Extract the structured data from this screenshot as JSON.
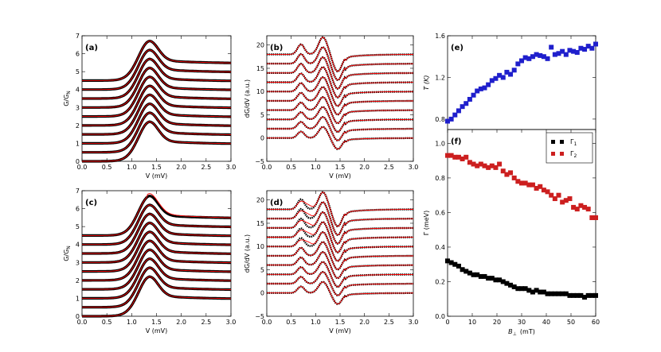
{
  "chart_data": [
    {
      "panel_label": "(a)",
      "type": "line",
      "xlabel": "V (mV)",
      "ylabel": "G/G",
      "ylabel_sub": "N",
      "xlim": [
        0.0,
        3.0
      ],
      "ylim": [
        0,
        7
      ],
      "xticks": [
        "0.0",
        "0.5",
        "1.0",
        "1.5",
        "2.0",
        "2.5",
        "3.0"
      ],
      "yticks": [
        "0",
        "1",
        "2",
        "3",
        "4",
        "5",
        "6",
        "7"
      ],
      "offsets": [
        0,
        0.5,
        1.0,
        1.5,
        2.0,
        2.5,
        3.0,
        3.5,
        4.0,
        4.5
      ],
      "peak_height": 1.4,
      "peak_position_mV": 1.35,
      "series": [
        {
          "name": "data",
          "color": "#000000"
        },
        {
          "name": "fit",
          "color": "#ff0000"
        }
      ]
    },
    {
      "panel_label": "(b)",
      "type": "line",
      "xlabel": "V (mV)",
      "ylabel": "dG/dV (a.u.)",
      "xlim": [
        0.0,
        3.0
      ],
      "ylim": [
        -5,
        22
      ],
      "xticks": [
        "0.0",
        "0.5",
        "1.0",
        "1.5",
        "2.0",
        "2.5",
        "3.0"
      ],
      "yticks": [
        "−5",
        "0",
        "5",
        "10",
        "15",
        "20"
      ],
      "offsets": [
        0,
        2,
        4,
        6,
        8,
        10,
        12,
        14,
        16,
        18
      ],
      "peak_positions_mV": [
        0.7,
        1.15
      ],
      "series": [
        {
          "name": "data",
          "color": "#000000"
        },
        {
          "name": "fit",
          "color": "#ff0000"
        }
      ]
    },
    {
      "panel_label": "(c)",
      "type": "line",
      "xlabel": "V (mV)",
      "ylabel": "G/G",
      "ylabel_sub": "N",
      "xlim": [
        0.0,
        3.0
      ],
      "ylim": [
        0,
        7
      ],
      "xticks": [
        "0.0",
        "0.5",
        "1.0",
        "1.5",
        "2.0",
        "2.5",
        "3.0"
      ],
      "yticks": [
        "0",
        "1",
        "2",
        "3",
        "4",
        "5",
        "6",
        "7"
      ],
      "offsets": [
        0,
        0.5,
        1.0,
        1.5,
        2.0,
        2.5,
        3.0,
        3.5,
        4.0,
        4.5
      ],
      "peak_height": 1.4,
      "peak_position_mV": 1.35,
      "series": [
        {
          "name": "data",
          "color": "#000000"
        },
        {
          "name": "fit",
          "color": "#ff0000"
        }
      ]
    },
    {
      "panel_label": "(d)",
      "type": "line",
      "xlabel": "V (mV)",
      "ylabel": "dG/dV (a.u.)",
      "xlim": [
        0.0,
        3.0
      ],
      "ylim": [
        -5,
        22
      ],
      "xticks": [
        "0.0",
        "0.5",
        "1.0",
        "1.5",
        "2.0",
        "2.5",
        "3.0"
      ],
      "yticks": [
        "−5",
        "0",
        "5",
        "10",
        "15",
        "20"
      ],
      "offsets": [
        0,
        2,
        4,
        6,
        8,
        10,
        12,
        14,
        16,
        18
      ],
      "peak_positions_mV": [
        0.7,
        1.15
      ],
      "series": [
        {
          "name": "data",
          "color": "#000000"
        },
        {
          "name": "fit",
          "color": "#ff0000"
        }
      ]
    },
    {
      "panel_label": "(e)",
      "type": "scatter",
      "xlabel": "",
      "ylabel": "T (K)",
      "xlim": [
        0,
        60
      ],
      "ylim": [
        0.7,
        1.6
      ],
      "yticks": [
        "0.8",
        "1.2",
        "1.6"
      ],
      "series": [
        {
          "name": "T",
          "color": "#1f1fcc",
          "x": [
            0,
            1.5,
            3,
            4.5,
            6,
            7.5,
            9,
            10.5,
            12,
            13.5,
            15,
            16.5,
            18,
            19.5,
            21,
            22.5,
            24,
            25.5,
            27,
            28.5,
            30,
            31.5,
            33,
            34.5,
            36,
            37.5,
            39,
            40.5,
            42,
            43.5,
            45,
            46.5,
            48,
            49.5,
            51,
            52.5,
            54,
            55.5,
            57,
            58.5,
            60
          ],
          "y": [
            0.78,
            0.8,
            0.84,
            0.88,
            0.92,
            0.95,
            0.99,
            1.03,
            1.07,
            1.09,
            1.1,
            1.13,
            1.17,
            1.19,
            1.22,
            1.2,
            1.25,
            1.23,
            1.27,
            1.33,
            1.36,
            1.39,
            1.38,
            1.4,
            1.42,
            1.41,
            1.4,
            1.38,
            1.49,
            1.42,
            1.43,
            1.45,
            1.42,
            1.46,
            1.45,
            1.44,
            1.48,
            1.47,
            1.5,
            1.48,
            1.52
          ]
        }
      ]
    },
    {
      "panel_label": "(f)",
      "type": "scatter",
      "xlabel": "B",
      "xlabel_sub": "⊥",
      "xlabel_units": "(mT)",
      "ylabel": "Γ (meV)",
      "xlim": [
        0,
        60
      ],
      "ylim": [
        0.0,
        1.08
      ],
      "xticks": [
        "0",
        "10",
        "20",
        "30",
        "40",
        "50",
        "60"
      ],
      "yticks": [
        "0.0",
        "0.2",
        "0.4",
        "0.6",
        "0.8",
        "1.0"
      ],
      "legend_location": "top-right",
      "series": [
        {
          "name": "Γ",
          "name_sub": "1",
          "color": "#000000",
          "x": [
            0,
            1.5,
            3,
            4.5,
            6,
            7.5,
            9,
            10.5,
            12,
            13.5,
            15,
            16.5,
            18,
            19.5,
            21,
            22.5,
            24,
            25.5,
            27,
            28.5,
            30,
            31.5,
            33,
            34.5,
            36,
            37.5,
            39,
            40.5,
            42,
            43.5,
            45,
            46.5,
            48,
            49.5,
            51,
            52.5,
            54,
            55.5,
            57,
            58.5,
            60
          ],
          "y": [
            0.32,
            0.31,
            0.3,
            0.29,
            0.27,
            0.26,
            0.25,
            0.24,
            0.24,
            0.23,
            0.23,
            0.22,
            0.22,
            0.21,
            0.21,
            0.2,
            0.19,
            0.18,
            0.17,
            0.16,
            0.16,
            0.16,
            0.15,
            0.14,
            0.15,
            0.14,
            0.14,
            0.13,
            0.13,
            0.13,
            0.13,
            0.13,
            0.13,
            0.12,
            0.12,
            0.12,
            0.12,
            0.11,
            0.12,
            0.12,
            0.12
          ]
        },
        {
          "name": "Γ",
          "name_sub": "2",
          "color": "#cc1f1f",
          "x": [
            0,
            1.5,
            3,
            4.5,
            6,
            7.5,
            9,
            10.5,
            12,
            13.5,
            15,
            16.5,
            18,
            19.5,
            21,
            22.5,
            24,
            25.5,
            27,
            28.5,
            30,
            31.5,
            33,
            34.5,
            36,
            37.5,
            39,
            40.5,
            42,
            43.5,
            45,
            46.5,
            48,
            49.5,
            51,
            52.5,
            54,
            55.5,
            57,
            58.5,
            60
          ],
          "y": [
            0.93,
            0.93,
            0.92,
            0.92,
            0.91,
            0.92,
            0.89,
            0.88,
            0.87,
            0.88,
            0.87,
            0.86,
            0.87,
            0.86,
            0.88,
            0.84,
            0.82,
            0.83,
            0.8,
            0.78,
            0.77,
            0.77,
            0.76,
            0.76,
            0.74,
            0.75,
            0.73,
            0.72,
            0.7,
            0.68,
            0.7,
            0.66,
            0.67,
            0.68,
            0.63,
            0.62,
            0.64,
            0.63,
            0.62,
            0.57,
            0.57
          ]
        }
      ]
    }
  ]
}
